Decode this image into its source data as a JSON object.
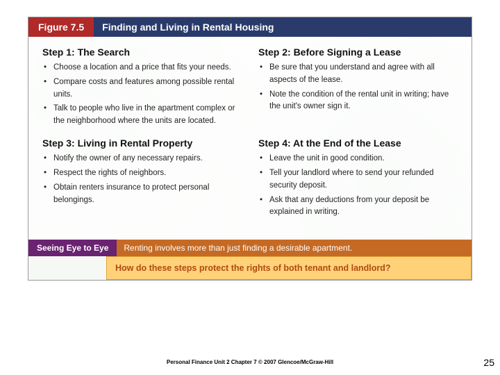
{
  "figure": {
    "label": "Figure 7.5",
    "title": "Finding and Living in Rental Housing",
    "colors": {
      "label_bg": "#b02a2a",
      "title_bg": "#2a3a6a",
      "eye_label_bg": "#6a2370",
      "eye_text_bg": "#c56a24",
      "question_bg": "#ffd27a",
      "question_border": "#e0a030",
      "question_text": "#b04a10"
    }
  },
  "steps": [
    {
      "title": "Step 1: The Search",
      "items": [
        "Choose a location and a price that fits your needs.",
        "Compare costs and features among possible rental units.",
        "Talk to people who live in the apartment complex or the neighborhood where the units are located."
      ]
    },
    {
      "title": "Step 2: Before Signing a Lease",
      "items": [
        "Be sure that you understand and agree with all aspects of the lease.",
        "Note the condition of the rental unit in writing; have the unit's owner sign it."
      ]
    },
    {
      "title": "Step 3: Living in Rental Property",
      "items": [
        "Notify the owner of any necessary repairs.",
        "Respect the rights of neighbors.",
        "Obtain renters insurance to protect personal belongings."
      ]
    },
    {
      "title": "Step 4: At the End of the Lease",
      "items": [
        "Leave the unit in good condition.",
        "Tell your landlord where to send your refunded security deposit.",
        "Ask that any deductions from your deposit be explained in writing."
      ]
    }
  ],
  "seeing": {
    "label": "Seeing Eye to Eye",
    "text": "Renting involves more than just finding a desirable apartment.",
    "question": "How do these steps protect the rights of both tenant and landlord?"
  },
  "footer": "Personal Finance  Unit 2  Chapter 7  © 2007  Glencoe/McGraw-Hill",
  "page": "25"
}
